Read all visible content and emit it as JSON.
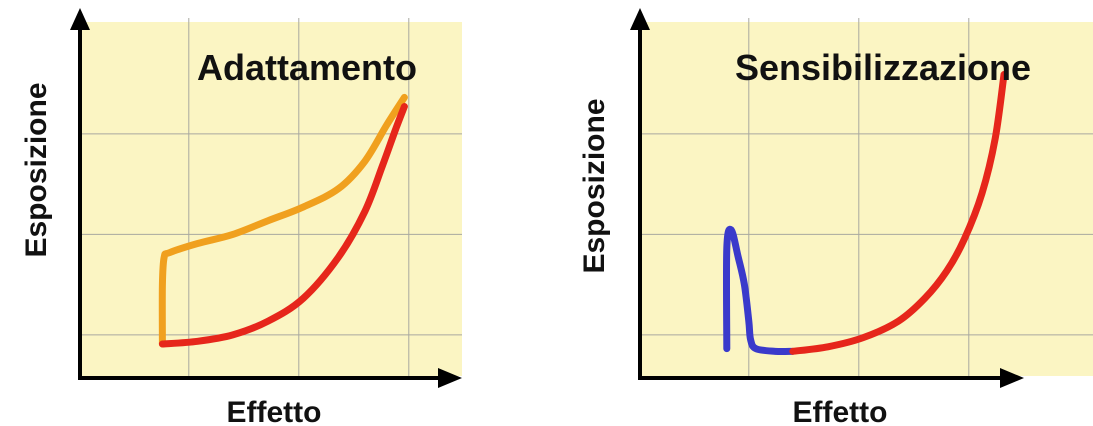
{
  "colors": {
    "plot_background": "#fbf5c3",
    "grid": "#a8a8a0",
    "axis": "#000000",
    "adaptation_curve": "#f0a01e",
    "sensitization_peak": "#3a3acb",
    "red_curve": "#e6261b"
  },
  "charts": [
    {
      "id": "adattamento",
      "title": "Adattamento",
      "xlabel": "Effetto",
      "ylabel": "Esposizione"
    },
    {
      "id": "sensibilizzazione",
      "title": "Sensibilizzazione",
      "xlabel": "Effetto",
      "ylabel": "Esposizione"
    }
  ],
  "chart_data": [
    {
      "type": "line",
      "title": "Adattamento",
      "xlabel": "Effetto",
      "ylabel": "Esposizione",
      "xlim": [
        0,
        4
      ],
      "ylim": [
        0,
        4
      ],
      "grid": true,
      "axis_tick_labels": false,
      "series": [
        {
          "color": "#f0a01e",
          "x": [
            0.8,
            0.8,
            0.82,
            0.88,
            1.2,
            1.6,
            2.0,
            2.4,
            2.8,
            3.1,
            3.35,
            3.55
          ],
          "y": [
            0.35,
            1.0,
            1.3,
            1.35,
            1.45,
            1.55,
            1.7,
            1.85,
            2.05,
            2.35,
            2.75,
            3.05
          ]
        },
        {
          "color": "#e6261b",
          "x": [
            0.8,
            1.2,
            1.6,
            2.0,
            2.4,
            2.8,
            3.1,
            3.3,
            3.45,
            3.55
          ],
          "y": [
            0.35,
            0.38,
            0.45,
            0.6,
            0.85,
            1.3,
            1.8,
            2.3,
            2.7,
            2.95
          ]
        }
      ]
    },
    {
      "type": "line",
      "title": "Sensibilizzazione",
      "xlabel": "Effetto",
      "ylabel": "Esposizione",
      "xlim": [
        0,
        4
      ],
      "ylim": [
        0,
        4
      ],
      "grid": true,
      "axis_tick_labels": false,
      "series": [
        {
          "color": "#3a3acb",
          "x": [
            0.85,
            0.85,
            0.9,
            0.98,
            1.05,
            1.1,
            1.12,
            1.18,
            1.4,
            1.6
          ],
          "y": [
            0.3,
            1.4,
            1.6,
            1.3,
            1.0,
            0.6,
            0.4,
            0.3,
            0.27,
            0.27
          ]
        },
        {
          "color": "#e6261b",
          "x": [
            1.6,
            2.0,
            2.4,
            2.8,
            3.1,
            3.35,
            3.55,
            3.75,
            3.9,
            4.0
          ],
          "y": [
            0.27,
            0.32,
            0.42,
            0.6,
            0.85,
            1.15,
            1.5,
            2.0,
            2.6,
            3.3
          ]
        }
      ]
    }
  ]
}
